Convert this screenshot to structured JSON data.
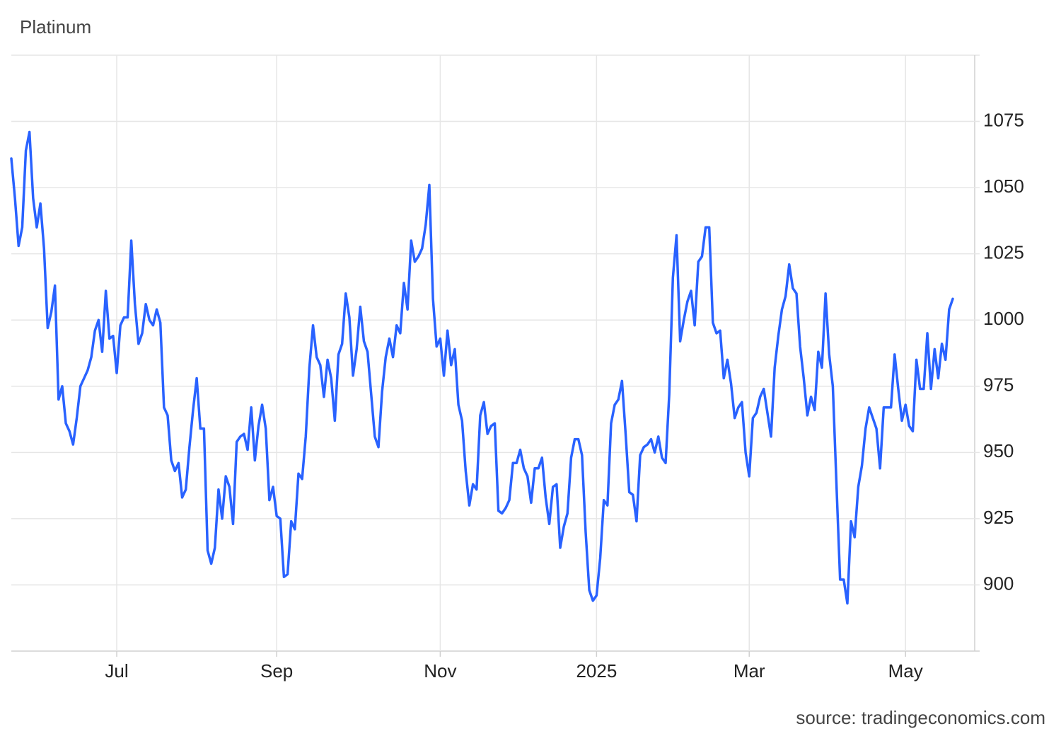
{
  "chart_data": {
    "type": "line",
    "title": "Platinum",
    "source": "source: tradingeconomics.com",
    "categories": [
      null,
      null,
      null,
      null,
      null,
      null,
      null,
      null,
      null,
      null,
      null,
      null,
      null,
      null,
      null,
      null,
      null,
      null,
      null,
      null,
      null,
      null,
      null,
      null,
      null,
      null,
      null,
      null,
      null,
      "Jul",
      null,
      null,
      null,
      null,
      null,
      null,
      null,
      null,
      null,
      null,
      null,
      null,
      null,
      null,
      null,
      null,
      null,
      null,
      null,
      null,
      null,
      null,
      null,
      null,
      null,
      null,
      null,
      null,
      null,
      null,
      null,
      null,
      null,
      null,
      null,
      null,
      null,
      null,
      null,
      null,
      null,
      null,
      null,
      "Sep",
      null,
      null,
      null,
      null,
      null,
      null,
      null,
      null,
      null,
      null,
      null,
      null,
      null,
      null,
      null,
      null,
      null,
      null,
      null,
      null,
      null,
      null,
      null,
      null,
      null,
      null,
      null,
      null,
      null,
      null,
      null,
      null,
      null,
      null,
      null,
      null,
      null,
      null,
      null,
      null,
      null,
      null,
      null,
      null,
      "Nov",
      null,
      null,
      null,
      null,
      null,
      null,
      null,
      null,
      null,
      null,
      null,
      null,
      null,
      null,
      null,
      null,
      null,
      null,
      null,
      null,
      null,
      null,
      null,
      null,
      null,
      null,
      null,
      null,
      null,
      null,
      null,
      null,
      null,
      null,
      null,
      null,
      null,
      null,
      null,
      null,
      null,
      null,
      "2025",
      null,
      null,
      null,
      null,
      null,
      null,
      null,
      null,
      null,
      null,
      null,
      null,
      null,
      null,
      null,
      null,
      null,
      null,
      null,
      null,
      null,
      null,
      null,
      null,
      null,
      null,
      null,
      null,
      null,
      null,
      null,
      null,
      null,
      null,
      null,
      null,
      null,
      null,
      null,
      null,
      null,
      "Mar",
      null,
      null,
      null,
      null,
      null,
      null,
      null,
      null,
      null,
      null,
      null,
      null,
      null,
      null,
      null,
      null,
      null,
      null,
      null,
      null,
      null,
      null,
      null,
      null,
      null,
      null,
      null,
      null,
      null,
      null,
      null,
      null,
      null,
      null,
      null,
      null,
      null,
      null,
      null,
      null,
      null,
      null,
      "May",
      null,
      null,
      null,
      null,
      null,
      null,
      null,
      null,
      null,
      null,
      null,
      null,
      null
    ],
    "series": [
      {
        "color": "#2962ff",
        "values": [
          1061,
          1046,
          1028,
          1035,
          1064,
          1071,
          1046,
          1035,
          1044,
          1027,
          997,
          1003,
          1013,
          970,
          975,
          961,
          958,
          953,
          963,
          975,
          978,
          981,
          986,
          996,
          1000,
          988,
          1011,
          993,
          994,
          980,
          998,
          1001,
          1001,
          1030,
          1006,
          991,
          995,
          1006,
          1000,
          998,
          1004,
          999,
          967,
          964,
          947,
          943,
          946,
          933,
          936,
          952,
          966,
          978,
          959,
          959,
          913,
          908,
          914,
          936,
          925,
          941,
          937,
          923,
          954,
          956,
          957,
          951,
          967,
          947,
          960,
          968,
          959,
          932,
          937,
          926,
          925,
          903,
          904,
          924,
          921,
          942,
          940,
          956,
          982,
          998,
          986,
          983,
          971,
          985,
          978,
          962,
          987,
          991,
          1010,
          1001,
          979,
          989,
          1005,
          992,
          988,
          972,
          956,
          952,
          973,
          986,
          993,
          986,
          998,
          995,
          1014,
          1004,
          1030,
          1022,
          1024,
          1027,
          1036,
          1051,
          1008,
          990,
          993,
          979,
          996,
          983,
          989,
          968,
          962,
          943,
          930,
          938,
          936,
          964,
          969,
          957,
          960,
          961,
          928,
          927,
          929,
          932,
          946,
          946,
          951,
          944,
          941,
          931,
          944,
          944,
          948,
          933,
          923,
          937,
          938,
          914,
          922,
          927,
          948,
          955,
          955,
          949,
          920,
          898,
          894,
          896,
          910,
          932,
          930,
          961,
          968,
          970,
          977,
          957,
          935,
          934,
          924,
          949,
          952,
          953,
          955,
          950,
          956,
          948,
          946,
          972,
          1016,
          1032,
          992,
          1000,
          1007,
          1011,
          998,
          1022,
          1024,
          1035,
          1035,
          999,
          995,
          996,
          978,
          985,
          976,
          963,
          967,
          969,
          950,
          941,
          963,
          965,
          971,
          974,
          965,
          956,
          982,
          994,
          1004,
          1009,
          1021,
          1012,
          1010,
          990,
          978,
          964,
          971,
          966,
          988,
          982,
          1010,
          987,
          975,
          938,
          902,
          902,
          893,
          924,
          918,
          937,
          945,
          959,
          967,
          963,
          959,
          944,
          967,
          967,
          967,
          987,
          974,
          962,
          968,
          960,
          958,
          985,
          974,
          974,
          995,
          974,
          989,
          978,
          991,
          985,
          1004,
          1008
        ]
      }
    ],
    "ylim": [
      875,
      1100
    ],
    "yticks": [
      900,
      925,
      950,
      975,
      1000,
      1025,
      1050,
      1075
    ],
    "grid": true
  }
}
